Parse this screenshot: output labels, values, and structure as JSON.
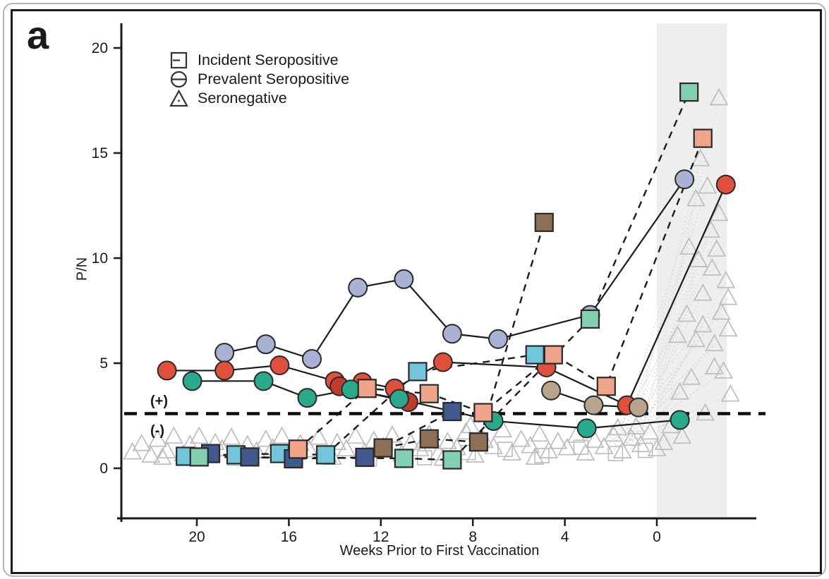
{
  "panel_label": "a",
  "chart_data": {
    "type": "scatter",
    "title": "",
    "xlabel": "Weeks Prior to First Vaccination",
    "ylabel": "P/N",
    "x_ticks": [
      20,
      16,
      12,
      8,
      4,
      0
    ],
    "y_ticks": [
      0,
      5,
      10,
      15,
      20
    ],
    "x_axis_direction": "weeks decrease left-to-right, values right of 0 are post-vaccination",
    "ylim": [
      -2.4,
      21
    ],
    "grid": false,
    "legend_position": "top-left-inside",
    "legend": [
      {
        "label": "Incident Seropositive",
        "marker": "square"
      },
      {
        "label": "Prevalent Seropositive",
        "marker": "circle"
      },
      {
        "label": "Seronegative",
        "marker": "triangle"
      }
    ],
    "cutoff": {
      "value": 2.6,
      "label_above": "(+)",
      "label_below": "(-)",
      "line_style": "bold-dashed"
    },
    "shaded_region": {
      "from_week": 0,
      "to_week": -3.05,
      "fill": "#eeeeee"
    },
    "series": [
      {
        "id": "prevalent-purple",
        "group": "Prevalent Seropositive",
        "marker": "circle",
        "line": "solid",
        "color": "#a9b2d4",
        "points": [
          [
            18.8,
            5.5
          ],
          [
            17.0,
            5.9
          ],
          [
            15.0,
            5.2
          ],
          [
            13.0,
            8.6
          ],
          [
            11.0,
            9.0
          ],
          [
            8.9,
            6.4
          ],
          [
            6.9,
            6.15
          ],
          [
            2.9,
            7.3
          ],
          [
            -1.2,
            13.75
          ]
        ]
      },
      {
        "id": "prevalent-red",
        "group": "Prevalent Seropositive",
        "marker": "circle",
        "line": "solid",
        "color": "#e0503c",
        "points": [
          [
            21.3,
            4.65
          ],
          [
            18.8,
            4.65
          ],
          [
            16.4,
            4.9
          ],
          [
            14.0,
            4.15
          ],
          [
            12.8,
            4.1
          ],
          [
            11.4,
            3.8
          ],
          [
            9.3,
            5.05
          ],
          [
            4.8,
            4.8
          ],
          [
            1.3,
            3.0
          ],
          [
            -3.0,
            13.5
          ]
        ]
      },
      {
        "id": "prevalent-darkred",
        "group": "Prevalent Seropositive",
        "marker": "circle",
        "line": "solid",
        "color": "#c23a2c",
        "points": [
          [
            13.8,
            3.9
          ],
          [
            10.8,
            3.15
          ]
        ]
      },
      {
        "id": "prevalent-green",
        "group": "Prevalent Seropositive",
        "marker": "circle",
        "line": "solid",
        "color": "#2aa98c",
        "points": [
          [
            20.2,
            4.15
          ],
          [
            17.1,
            4.15
          ],
          [
            15.2,
            3.35
          ],
          [
            13.3,
            3.75
          ],
          [
            11.2,
            3.3
          ],
          [
            7.1,
            2.25
          ],
          [
            3.05,
            1.9
          ],
          [
            -1.0,
            2.3
          ]
        ]
      },
      {
        "id": "prevalent-tan",
        "group": "Prevalent Seropositive",
        "marker": "circle",
        "line": "solid",
        "color": "#b8a48c",
        "points": [
          [
            4.6,
            3.7
          ],
          [
            2.75,
            3.0
          ],
          [
            0.8,
            2.9
          ]
        ]
      },
      {
        "id": "incident-cyan",
        "group": "Incident Seropositive",
        "marker": "square",
        "line": "dashed",
        "color": "#72c6dc",
        "points": [
          [
            20.5,
            0.57
          ],
          [
            18.3,
            0.64
          ],
          [
            16.4,
            0.7
          ],
          [
            14.4,
            0.64
          ],
          [
            10.4,
            4.6
          ],
          [
            5.3,
            5.4
          ]
        ]
      },
      {
        "id": "incident-navy",
        "group": "Incident Seropositive",
        "marker": "square",
        "line": "dashed",
        "color": "#41598f",
        "points": [
          [
            19.4,
            0.7
          ],
          [
            17.7,
            0.54
          ],
          [
            15.8,
            0.45
          ],
          [
            12.7,
            0.52
          ],
          [
            8.9,
            2.7
          ]
        ]
      },
      {
        "id": "incident-salmon",
        "group": "Incident Seropositive",
        "marker": "square",
        "line": "dashed",
        "color": "#f2a48b",
        "points": [
          [
            15.6,
            0.91
          ],
          [
            12.6,
            3.8
          ],
          [
            9.9,
            3.55
          ],
          [
            7.55,
            2.65
          ],
          [
            4.5,
            5.4
          ],
          [
            2.2,
            3.9
          ],
          [
            -2.0,
            15.7
          ]
        ]
      },
      {
        "id": "incident-green",
        "group": "Incident Seropositive",
        "marker": "square",
        "line": "dashed",
        "color": "#83cfb2",
        "points": [
          [
            19.9,
            0.54
          ],
          [
            11.0,
            0.47
          ],
          [
            8.9,
            0.4
          ],
          [
            2.9,
            7.1
          ],
          [
            -1.4,
            17.9
          ]
        ]
      },
      {
        "id": "incident-brown",
        "group": "Incident Seropositive",
        "marker": "square",
        "line": "dashed",
        "color": "#8d6f55",
        "points": [
          [
            11.9,
            0.97
          ],
          [
            9.9,
            1.4
          ],
          [
            7.75,
            1.25
          ],
          [
            4.9,
            11.7
          ]
        ]
      }
    ],
    "seronegative": {
      "marker": "triangle",
      "color": "#bdbdbd",
      "baseline_points": [
        [
          22.8,
          0.75
        ],
        [
          22.4,
          1.15
        ],
        [
          22.0,
          0.6
        ],
        [
          21.7,
          1.35
        ],
        [
          21.3,
          0.8
        ],
        [
          21.0,
          1.5
        ],
        [
          20.6,
          0.65
        ],
        [
          20.3,
          1.1
        ],
        [
          19.9,
          1.5
        ],
        [
          19.6,
          0.7
        ],
        [
          19.2,
          1.2
        ],
        [
          18.9,
          0.9
        ],
        [
          18.5,
          1.45
        ],
        [
          18.1,
          0.6
        ],
        [
          17.8,
          1.1
        ],
        [
          17.4,
          0.8
        ],
        [
          17.0,
          1.35
        ],
        [
          16.7,
          0.95
        ],
        [
          16.3,
          1.5
        ],
        [
          15.9,
          0.7
        ],
        [
          15.5,
          1.15
        ],
        [
          15.1,
          0.85
        ],
        [
          14.7,
          1.45
        ],
        [
          14.3,
          0.6
        ],
        [
          13.9,
          1.2
        ],
        [
          13.5,
          0.9
        ],
        [
          13.1,
          1.5
        ],
        [
          12.7,
          0.75
        ],
        [
          12.3,
          1.3
        ],
        [
          11.9,
          1.0
        ],
        [
          11.5,
          1.55
        ],
        [
          11.1,
          0.65
        ],
        [
          10.7,
          1.2
        ],
        [
          10.3,
          0.9
        ],
        [
          9.9,
          1.6
        ],
        [
          9.5,
          0.7
        ],
        [
          9.1,
          1.25
        ],
        [
          8.7,
          0.95
        ],
        [
          8.3,
          1.7
        ],
        [
          7.9,
          0.6
        ],
        [
          7.5,
          1.3
        ],
        [
          7.1,
          1.0
        ],
        [
          6.7,
          1.8
        ],
        [
          6.3,
          0.7
        ],
        [
          5.9,
          1.35
        ],
        [
          5.5,
          1.05
        ],
        [
          5.1,
          1.6
        ],
        [
          4.7,
          0.8
        ],
        [
          4.3,
          1.25
        ],
        [
          3.9,
          0.95
        ],
        [
          3.5,
          1.55
        ],
        [
          3.1,
          0.7
        ],
        [
          2.7,
          1.3
        ],
        [
          2.3,
          1.0
        ],
        [
          1.9,
          1.6
        ],
        [
          1.5,
          0.8
        ],
        [
          1.1,
          1.4
        ],
        [
          0.7,
          1.1
        ],
        [
          0.3,
          1.7
        ],
        [
          0.0,
          0.9
        ],
        [
          21.5,
          0.5
        ],
        [
          18.3,
          0.45
        ],
        [
          14.1,
          0.5
        ],
        [
          9.3,
          0.45
        ],
        [
          5.3,
          0.5
        ],
        [
          1.7,
          1.9
        ],
        [
          8.1,
          2.0
        ],
        [
          0.9,
          1.95
        ]
      ],
      "post_vaccination_points": [
        [
          -2.7,
          17.6
        ],
        [
          -1.9,
          14.7
        ],
        [
          -2.2,
          13.4
        ],
        [
          -1.7,
          12.8
        ],
        [
          -2.7,
          12.1
        ],
        [
          -2.35,
          11.3
        ],
        [
          -1.8,
          9.9
        ],
        [
          -1.4,
          10.5
        ],
        [
          -2.6,
          10.4
        ],
        [
          -2.4,
          9.5
        ],
        [
          -3.0,
          8.9
        ],
        [
          -2.0,
          8.3
        ],
        [
          -3.1,
          8.1
        ],
        [
          -1.3,
          7.3
        ],
        [
          -2.0,
          6.8
        ],
        [
          -0.9,
          6.3
        ],
        [
          -1.7,
          6.1
        ],
        [
          -2.5,
          5.9
        ],
        [
          -2.9,
          4.6
        ],
        [
          -2.5,
          4.8
        ],
        [
          -1.5,
          4.3
        ],
        [
          -1.0,
          3.6
        ],
        [
          -3.2,
          3.5
        ],
        [
          -2.1,
          2.6
        ],
        [
          -0.6,
          2.0
        ],
        [
          -1.1,
          1.5
        ],
        [
          -0.3,
          1.2
        ],
        [
          -3.1,
          6.6
        ],
        [
          -2.8,
          7.4
        ]
      ],
      "baseline_gray_squares": [
        [
          8.2,
          0.75
        ],
        [
          6.6,
          0.9
        ],
        [
          5.0,
          0.6
        ],
        [
          3.3,
          1.0
        ],
        [
          1.8,
          0.7
        ],
        [
          0.5,
          0.85
        ],
        [
          10.1,
          0.5
        ],
        [
          12.5,
          0.45
        ]
      ],
      "rise_lines": {
        "style": "dotted",
        "color": "#d2d2d2"
      }
    }
  }
}
